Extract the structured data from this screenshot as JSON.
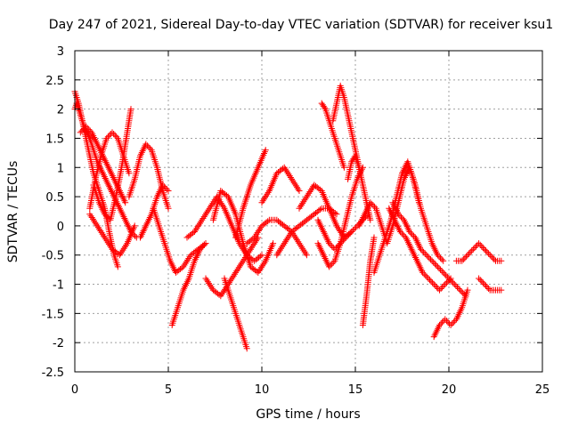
{
  "chart_data": {
    "type": "scatter",
    "title": "Day 247 of 2021, Sidereal Day-to-day VTEC variation (SDTVAR) for receiver ksu1",
    "xlabel": "GPS time / hours",
    "ylabel": "SDTVAR / TECUs",
    "xlim": [
      0,
      25
    ],
    "ylim": [
      -2.5,
      3
    ],
    "xticks": [
      0,
      5,
      10,
      15,
      20,
      25
    ],
    "xtick_labels": [
      "0",
      "5",
      "10",
      "15",
      "20",
      "25"
    ],
    "yticks": [
      -2.5,
      -2,
      -1.5,
      -1,
      -0.5,
      0,
      0.5,
      1,
      1.5,
      2,
      2.5,
      3
    ],
    "ytick_labels": [
      "-2.5",
      "-2",
      "-1.5",
      "-1",
      "-0.5",
      "0",
      "0.5",
      "1",
      "1.5",
      "2",
      "2.5",
      "3"
    ],
    "grid": true,
    "marker": "+",
    "color": "#ff0000",
    "series": [
      {
        "name": "SDTVAR",
        "arcs": [
          {
            "x": [
              0.0,
              0.2,
              0.4,
              0.6,
              0.8,
              1.0,
              1.3,
              1.6,
              1.9,
              2.1,
              2.3
            ],
            "y": [
              2.3,
              2.1,
              1.8,
              1.5,
              1.2,
              0.9,
              0.6,
              0.3,
              -0.2,
              -0.5,
              -0.7
            ]
          },
          {
            "x": [
              0.0,
              0.1,
              0.3,
              0.5,
              0.8,
              1.0,
              1.2,
              1.5,
              1.8,
              2.1,
              2.4,
              2.7,
              3.0,
              3.3
            ],
            "y": [
              2.0,
              2.1,
              1.9,
              1.7,
              1.5,
              1.3,
              1.1,
              0.9,
              0.7,
              0.5,
              0.3,
              0.1,
              -0.1,
              -0.2
            ]
          },
          {
            "x": [
              0.3,
              0.6,
              0.9,
              1.2,
              1.5,
              1.8,
              2.1,
              2.4,
              2.7
            ],
            "y": [
              1.6,
              1.7,
              1.6,
              1.4,
              1.2,
              1.0,
              0.8,
              0.6,
              0.4
            ]
          },
          {
            "x": [
              0.8,
              1.1,
              1.4,
              1.7,
              2.0,
              2.3,
              2.6,
              2.9
            ],
            "y": [
              0.3,
              0.8,
              1.2,
              1.5,
              1.6,
              1.5,
              1.2,
              0.9
            ]
          },
          {
            "x": [
              1.0,
              1.3,
              1.6,
              1.9,
              2.2,
              2.5,
              2.8,
              3.0
            ],
            "y": [
              0.7,
              0.4,
              0.2,
              0.1,
              0.5,
              1.0,
              1.6,
              2.0
            ]
          },
          {
            "x": [
              0.8,
              1.2,
              1.6,
              2.0,
              2.4,
              2.8,
              3.2
            ],
            "y": [
              0.2,
              0.0,
              -0.2,
              -0.4,
              -0.5,
              -0.3,
              0.0
            ]
          },
          {
            "x": [
              2.9,
              3.2,
              3.5,
              3.8,
              4.1,
              4.4,
              4.7,
              5.0
            ],
            "y": [
              0.5,
              0.8,
              1.2,
              1.4,
              1.3,
              1.0,
              0.6,
              0.3
            ]
          },
          {
            "x": [
              3.5,
              3.8,
              4.1,
              4.4,
              4.7,
              5.0
            ],
            "y": [
              -0.2,
              0.0,
              0.2,
              0.5,
              0.7,
              0.6
            ]
          },
          {
            "x": [
              4.2,
              4.5,
              4.8,
              5.1,
              5.4,
              5.8,
              6.2,
              6.6,
              7.0
            ],
            "y": [
              0.3,
              0.0,
              -0.3,
              -0.6,
              -0.8,
              -0.7,
              -0.5,
              -0.4,
              -0.3
            ]
          },
          {
            "x": [
              5.2,
              5.5,
              5.8,
              6.1,
              6.4,
              6.7,
              7.0
            ],
            "y": [
              -1.7,
              -1.4,
              -1.1,
              -0.9,
              -0.6,
              -0.4,
              -0.3
            ]
          },
          {
            "x": [
              6.0,
              6.4,
              6.8,
              7.2,
              7.6,
              8.0,
              8.4,
              8.8,
              9.2,
              9.6,
              10.0
            ],
            "y": [
              -0.2,
              -0.1,
              0.1,
              0.3,
              0.5,
              0.3,
              0.0,
              -0.3,
              -0.5,
              -0.6,
              -0.5
            ]
          },
          {
            "x": [
              7.0,
              7.4,
              7.8,
              8.2,
              8.6,
              9.0,
              9.4,
              9.8
            ],
            "y": [
              -0.9,
              -1.1,
              -1.2,
              -1.0,
              -0.8,
              -0.6,
              -0.4,
              -0.2
            ]
          },
          {
            "x": [
              7.4,
              7.8,
              8.2,
              8.6,
              9.0,
              9.4,
              9.8,
              10.2,
              10.6
            ],
            "y": [
              0.1,
              0.6,
              0.5,
              0.2,
              -0.3,
              -0.7,
              -0.8,
              -0.6,
              -0.3
            ]
          },
          {
            "x": [
              8.0,
              8.3,
              8.6,
              8.9,
              9.2
            ],
            "y": [
              -0.9,
              -1.2,
              -1.5,
              -1.8,
              -2.1
            ]
          },
          {
            "x": [
              8.6,
              9.0,
              9.4,
              9.8,
              10.2
            ],
            "y": [
              -0.2,
              0.3,
              0.7,
              1.0,
              1.3
            ]
          },
          {
            "x": [
              9.2,
              9.6,
              10.0,
              10.4,
              10.8,
              11.2,
              11.6,
              12.0,
              12.4
            ],
            "y": [
              -0.3,
              -0.2,
              0.0,
              0.1,
              0.1,
              0.0,
              -0.1,
              -0.3,
              -0.5
            ]
          },
          {
            "x": [
              10.0,
              10.4,
              10.8,
              11.2,
              11.6,
              12.0
            ],
            "y": [
              0.4,
              0.6,
              0.9,
              1.0,
              0.8,
              0.6
            ]
          },
          {
            "x": [
              10.8,
              11.2,
              11.6,
              12.0,
              12.4,
              12.8,
              13.2,
              13.6,
              14.0
            ],
            "y": [
              -0.5,
              -0.3,
              -0.1,
              0.0,
              0.1,
              0.2,
              0.3,
              0.3,
              0.2
            ]
          },
          {
            "x": [
              12.0,
              12.4,
              12.8,
              13.2,
              13.6,
              14.0,
              14.4,
              14.8
            ],
            "y": [
              0.3,
              0.5,
              0.7,
              0.6,
              0.3,
              0.0,
              -0.2,
              -0.1
            ]
          },
          {
            "x": [
              13.0,
              13.3,
              13.6,
              13.9,
              14.2,
              14.5,
              14.8,
              15.1,
              15.4
            ],
            "y": [
              -0.3,
              -0.5,
              -0.7,
              -0.6,
              -0.3,
              0.1,
              0.5,
              0.8,
              1.0
            ]
          },
          {
            "x": [
              13.0,
              13.3,
              13.6,
              13.9,
              14.2,
              14.5,
              14.8,
              15.1,
              15.4,
              15.7
            ],
            "y": [
              0.1,
              -0.1,
              -0.3,
              -0.4,
              -0.3,
              -0.2,
              -0.1,
              0.0,
              0.1,
              0.2
            ]
          },
          {
            "x": [
              13.2,
              13.4,
              13.6,
              13.8,
              14.0,
              14.2,
              14.4
            ],
            "y": [
              2.1,
              2.0,
              1.8,
              1.6,
              1.4,
              1.2,
              1.0
            ]
          },
          {
            "x": [
              13.8,
              14.0,
              14.2,
              14.4,
              14.6,
              14.8,
              15.0,
              15.2
            ],
            "y": [
              1.8,
              2.1,
              2.4,
              2.2,
              1.9,
              1.6,
              1.3,
              1.0
            ]
          },
          {
            "x": [
              14.6,
              14.8,
              15.0,
              15.2,
              15.4,
              15.6,
              15.8
            ],
            "y": [
              0.8,
              1.1,
              1.2,
              1.0,
              0.7,
              0.4,
              0.1
            ]
          },
          {
            "x": [
              15.4,
              15.6,
              15.8,
              16.0
            ],
            "y": [
              -1.7,
              -1.2,
              -0.6,
              -0.2
            ]
          },
          {
            "x": [
              15.2,
              15.5,
              15.8,
              16.1,
              16.4,
              16.7,
              17.0,
              17.3,
              17.6,
              17.9,
              18.2,
              18.5,
              18.8,
              19.1,
              19.4,
              19.7
            ],
            "y": [
              0.0,
              0.2,
              0.4,
              0.3,
              0.0,
              -0.3,
              0.0,
              0.4,
              0.8,
              1.0,
              0.7,
              0.3,
              0.0,
              -0.3,
              -0.5,
              -0.6
            ]
          },
          {
            "x": [
              16.0,
              16.3,
              16.6,
              16.9,
              17.2,
              17.5,
              17.8,
              18.1,
              18.4
            ],
            "y": [
              -0.8,
              -0.5,
              -0.2,
              0.1,
              0.5,
              0.9,
              1.1,
              0.8,
              0.4
            ]
          },
          {
            "x": [
              16.8,
              17.1,
              17.4,
              17.7,
              18.0,
              18.3,
              18.6,
              18.9,
              19.2,
              19.5,
              19.8,
              20.1
            ],
            "y": [
              0.3,
              0.1,
              -0.1,
              -0.2,
              -0.4,
              -0.6,
              -0.8,
              -0.9,
              -1.0,
              -1.1,
              -1.0,
              -0.9
            ]
          },
          {
            "x": [
              17.0,
              17.3,
              17.6,
              17.9,
              18.2,
              18.5,
              18.8,
              19.1,
              19.4,
              19.7,
              20.0,
              20.3,
              20.6,
              20.9
            ],
            "y": [
              0.4,
              0.2,
              0.1,
              -0.1,
              -0.2,
              -0.4,
              -0.5,
              -0.6,
              -0.7,
              -0.8,
              -0.9,
              -1.0,
              -1.1,
              -1.2
            ]
          },
          {
            "x": [
              19.2,
              19.5,
              19.8,
              20.1,
              20.4,
              20.7,
              21.0
            ],
            "y": [
              -1.9,
              -1.7,
              -1.6,
              -1.7,
              -1.6,
              -1.4,
              -1.1
            ]
          },
          {
            "x": [
              20.4,
              20.7,
              21.0,
              21.3,
              21.6,
              21.9,
              22.2,
              22.5,
              22.8
            ],
            "y": [
              -0.6,
              -0.6,
              -0.5,
              -0.4,
              -0.3,
              -0.4,
              -0.5,
              -0.6,
              -0.6
            ]
          },
          {
            "x": [
              21.6,
              21.9,
              22.2,
              22.5,
              22.8
            ],
            "y": [
              -0.9,
              -1.0,
              -1.1,
              -1.1,
              -1.1
            ]
          }
        ]
      }
    ]
  }
}
